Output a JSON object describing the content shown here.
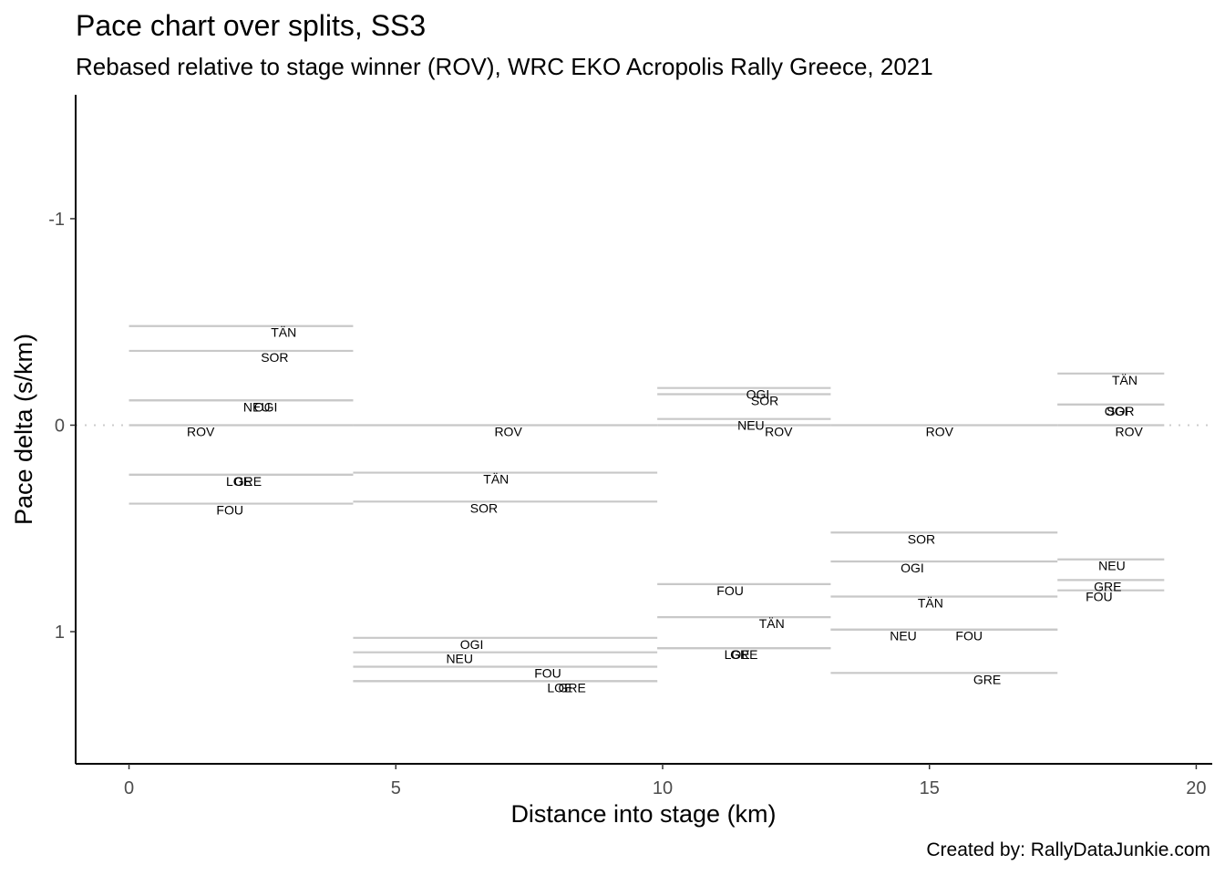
{
  "chart_data": {
    "type": "segment",
    "title": "Pace chart over splits, SS3",
    "subtitle": "Rebased relative to stage winner (ROV), WRC EKO Acropolis Rally Greece, 2021",
    "caption": "Created by: RallyDataJunkie.com",
    "xlabel": "Distance into stage (km)",
    "ylabel": "Pace delta (s/km)",
    "xlim": [
      -1,
      20.3
    ],
    "ylim": [
      -1.6,
      1.64
    ],
    "y_reversed": true,
    "grid": false,
    "reference_line_y": 0,
    "x_ticks": [
      0,
      5,
      10,
      15,
      20
    ],
    "y_ticks": [
      -1,
      0,
      1
    ],
    "x_tick_labels": [
      "0",
      "5",
      "10",
      "15",
      "20"
    ],
    "y_tick_labels": [
      "-1",
      "0",
      "1"
    ],
    "splits": [
      {
        "start": 0,
        "end": 4.2
      },
      {
        "start": 4.2,
        "end": 9.9
      },
      {
        "start": 9.9,
        "end": 13.15
      },
      {
        "start": 13.15,
        "end": 17.4
      },
      {
        "start": 17.4,
        "end": 19.4
      }
    ],
    "series": [
      {
        "name": "ROV",
        "values": [
          0,
          0,
          0,
          0,
          0
        ]
      },
      {
        "name": "TÄN",
        "values": [
          -0.48,
          0.23,
          0.93,
          0.83,
          -0.25
        ]
      },
      {
        "name": "SOR",
        "values": [
          -0.36,
          0.37,
          -0.15,
          0.52,
          -0.1
        ]
      },
      {
        "name": "OGI",
        "values": [
          -0.12,
          1.03,
          -0.18,
          0.66,
          -0.1
        ]
      },
      {
        "name": "NEU",
        "values": [
          -0.12,
          1.1,
          -0.03,
          0.99,
          0.65
        ]
      },
      {
        "name": "GRE",
        "values": [
          0.24,
          1.24,
          1.08,
          1.2,
          0.75
        ]
      },
      {
        "name": "LOE",
        "values": [
          0.24,
          1.24,
          1.08,
          null,
          null
        ]
      },
      {
        "name": "FOU",
        "values": [
          0.38,
          1.17,
          0.77,
          0.99,
          0.8
        ]
      }
    ]
  }
}
